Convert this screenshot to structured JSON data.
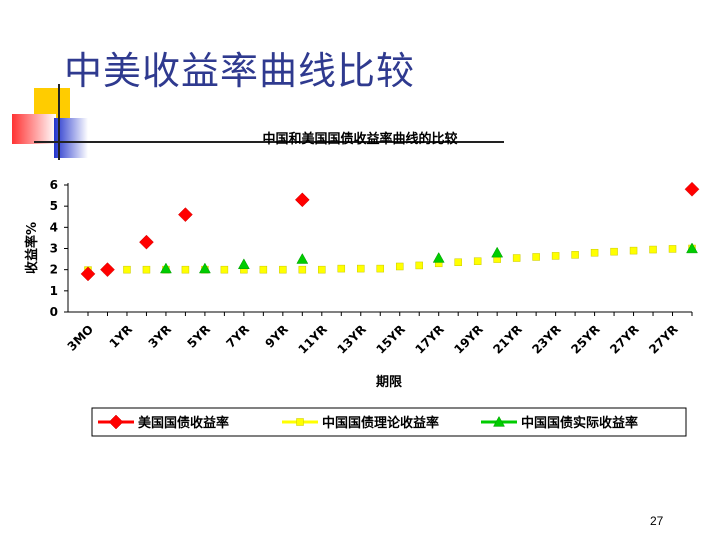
{
  "slide": {
    "title": "中美收益率曲线比较",
    "page_number": "27"
  },
  "colors": {
    "us": "#ff0000",
    "cn_theory": "#ffff00",
    "cn_actual": "#00cc00",
    "title_blue": "#2f3a8f",
    "deco_yellow": "#ffcc00",
    "deco_red": "#ff3333",
    "deco_blue": "#2233cc"
  },
  "chart_data": {
    "type": "scatter",
    "title": "中国和美国国债收益率曲线的比较",
    "xlabel": "期限",
    "ylabel": "收益率%",
    "ylim": [
      0,
      6
    ],
    "yticks": [
      "0",
      "1",
      "2",
      "3",
      "4",
      "5",
      "6"
    ],
    "tick_labels": [
      "3MO",
      "1YR",
      "3YR",
      "5YR",
      "7YR",
      "9YR",
      "11YR",
      "13YR",
      "15YR",
      "17YR",
      "19YR",
      "21YR",
      "23YR",
      "25YR",
      "27YR",
      "27YR"
    ],
    "legend_position": "bottom",
    "series": [
      {
        "name": "美国国债收益率",
        "marker": "diamond",
        "x": [
          0,
          1,
          3,
          5,
          11,
          31
        ],
        "y": [
          1.8,
          2.0,
          3.3,
          4.6,
          5.3,
          5.8
        ]
      },
      {
        "name": "中国国债理论收益率",
        "marker": "square",
        "x": [
          0,
          1,
          2,
          3,
          4,
          5,
          6,
          7,
          8,
          9,
          10,
          11,
          12,
          13,
          14,
          15,
          16,
          17,
          18,
          19,
          20,
          21,
          22,
          23,
          24,
          25,
          26,
          27,
          28,
          29,
          30,
          31
        ],
        "y": [
          1.98,
          2.0,
          2.0,
          2.0,
          2.0,
          2.0,
          2.0,
          2.0,
          2.0,
          2.0,
          2.0,
          2.0,
          2.0,
          2.05,
          2.05,
          2.05,
          2.15,
          2.2,
          2.3,
          2.35,
          2.4,
          2.5,
          2.55,
          2.6,
          2.65,
          2.7,
          2.8,
          2.85,
          2.9,
          2.95,
          2.98,
          3.0
        ]
      },
      {
        "name": "中国国债实际收益率",
        "marker": "triangle",
        "x": [
          4,
          6,
          8,
          11,
          18,
          21,
          31
        ],
        "y": [
          2.05,
          2.05,
          2.25,
          2.5,
          2.55,
          2.8,
          3.0
        ]
      }
    ]
  }
}
